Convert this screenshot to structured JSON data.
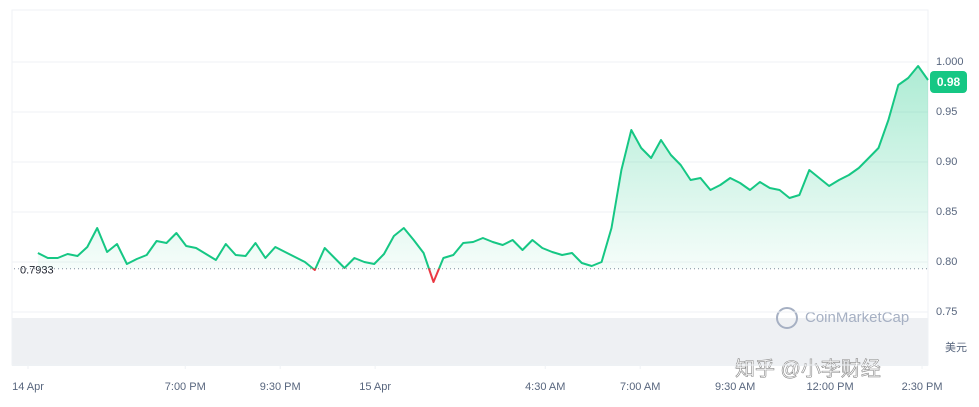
{
  "chart_data": {
    "type": "line",
    "reference_value": 0.7933,
    "current_price": 0.98,
    "unit_label": "美元",
    "watermark": "CoinMarketCap",
    "source_watermark": "知乎 @小李财经",
    "up_color": "#16c784",
    "down_color": "#ea3943",
    "values": [
      0.809,
      0.804,
      0.804,
      0.808,
      0.806,
      0.815,
      0.834,
      0.81,
      0.818,
      0.798,
      0.803,
      0.807,
      0.821,
      0.819,
      0.829,
      0.816,
      0.814,
      0.808,
      0.802,
      0.818,
      0.807,
      0.806,
      0.819,
      0.804,
      0.815,
      0.81,
      0.805,
      0.8,
      0.792,
      0.814,
      0.804,
      0.794,
      0.804,
      0.8,
      0.798,
      0.808,
      0.826,
      0.834,
      0.822,
      0.809,
      0.78,
      0.804,
      0.807,
      0.819,
      0.82,
      0.824,
      0.82,
      0.817,
      0.822,
      0.812,
      0.822,
      0.814,
      0.81,
      0.807,
      0.809,
      0.799,
      0.796,
      0.8,
      0.834,
      0.892,
      0.932,
      0.914,
      0.904,
      0.922,
      0.907,
      0.897,
      0.882,
      0.884,
      0.872,
      0.877,
      0.884,
      0.879,
      0.872,
      0.88,
      0.874,
      0.872,
      0.864,
      0.867,
      0.892,
      0.884,
      0.876,
      0.882,
      0.887,
      0.894,
      0.904,
      0.914,
      0.942,
      0.977,
      0.984,
      0.996,
      0.982
    ],
    "xlim": [
      -1,
      90
    ],
    "xticks": [
      {
        "value": -1,
        "label": "14 Apr"
      },
      {
        "value": 14.9,
        "label": "7:00 PM"
      },
      {
        "value": 24.5,
        "label": "9:30 PM"
      },
      {
        "value": 34.1,
        "label": "15 Apr"
      },
      {
        "value": 51.3,
        "label": "4:30 AM"
      },
      {
        "value": 60.9,
        "label": "7:00 AM"
      },
      {
        "value": 70.5,
        "label": "9:30 AM"
      },
      {
        "value": 80.1,
        "label": "12:00 PM"
      },
      {
        "value": 89.4,
        "label": "2:30 PM"
      }
    ],
    "ylim": [
      0.697,
      1.052
    ],
    "yticks": [
      {
        "value": 1.0,
        "label": "1.000"
      },
      0.95,
      {
        "value": 0.9,
        "label": "0.90"
      },
      0.85,
      {
        "value": 0.8,
        "label": "0.80"
      },
      0.75
    ],
    "grid": true
  }
}
